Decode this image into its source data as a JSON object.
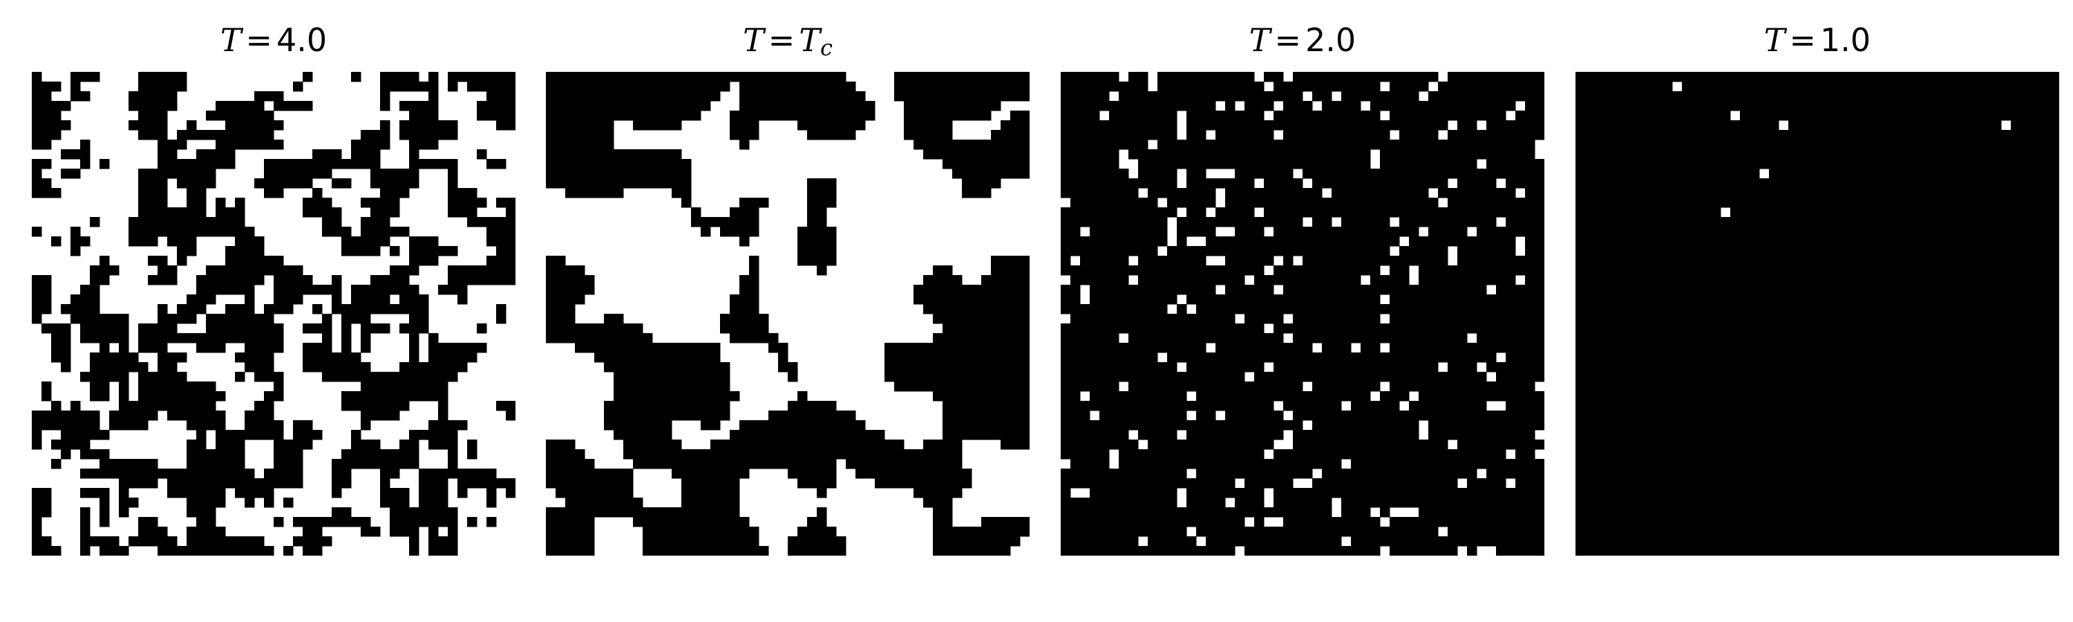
{
  "figure": {
    "colors": {
      "spin_up": "#000000",
      "spin_down": "#ffffff",
      "text": "#000000"
    },
    "lattice_size": 50
  },
  "chart_data": [
    {
      "type": "heatmap",
      "title": {
        "symbol": "T",
        "operator": "=",
        "rhs": "4.0",
        "rhs_symbol": "",
        "rhs_subscript": ""
      },
      "temperature": 4.0,
      "grid": [
        50,
        50
      ],
      "fraction_black": 0.48,
      "seed": 101,
      "correlation_smoothing": 1,
      "colors": {
        "black": "#000000",
        "white": "#ffffff"
      }
    },
    {
      "type": "heatmap",
      "title": {
        "symbol": "T",
        "operator": "=",
        "rhs": "",
        "rhs_symbol": "T",
        "rhs_subscript": "c"
      },
      "temperature": "T_c",
      "grid": [
        50,
        50
      ],
      "fraction_black": 0.5,
      "seed": 202,
      "correlation_smoothing": 4,
      "colors": {
        "black": "#000000",
        "white": "#ffffff"
      }
    },
    {
      "type": "heatmap",
      "title": {
        "symbol": "T",
        "operator": "=",
        "rhs": "2.0",
        "rhs_symbol": "",
        "rhs_subscript": ""
      },
      "temperature": 2.0,
      "grid": [
        50,
        50
      ],
      "fraction_black": 0.92,
      "seed": 303,
      "correlation_smoothing": 0,
      "colors": {
        "black": "#000000",
        "white": "#ffffff"
      }
    },
    {
      "type": "heatmap",
      "title": {
        "symbol": "T",
        "operator": "=",
        "rhs": "1.0",
        "rhs_symbol": "",
        "rhs_subscript": ""
      },
      "temperature": 1.0,
      "grid": [
        50,
        50
      ],
      "fraction_black": 0.998,
      "white_sites": [
        [
          1,
          10
        ],
        [
          4,
          16
        ],
        [
          5,
          21
        ],
        [
          5,
          44
        ],
        [
          10,
          19
        ],
        [
          14,
          15
        ]
      ],
      "seed": 404,
      "correlation_smoothing": 0,
      "colors": {
        "black": "#000000",
        "white": "#ffffff"
      }
    }
  ]
}
